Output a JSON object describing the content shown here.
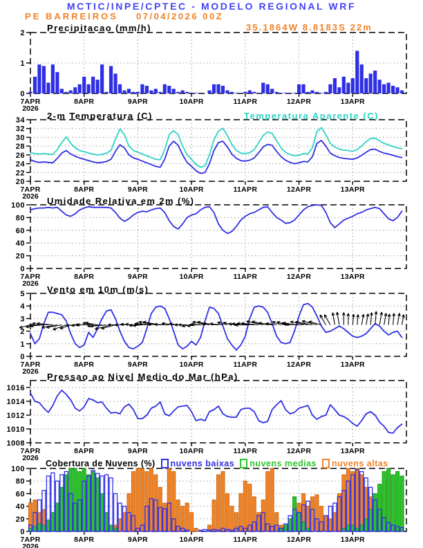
{
  "header": {
    "model_title": "MCTIC/INPE/CPTEC - MODELO REGIONAL WRF",
    "station": "PE BARREIROS",
    "run": "07/04/2026 00Z",
    "location": "35.1864W 8.8183S 22m"
  },
  "colors": {
    "blue": "#2e2ee4",
    "cyan": "#2cd3c4",
    "orange": "#f08228",
    "orange_dark": "#cf6a10",
    "green": "#2cc42c",
    "green_dark": "#0f9a0f",
    "header_blue": "#4343f5",
    "grid": "#9a9a9a",
    "black": "#000000"
  },
  "time_axis": {
    "days": [
      "7APR",
      "8APR",
      "9APR",
      "10APR",
      "11APR",
      "12APR",
      "13APR"
    ],
    "year": "2026",
    "start_hour": "00Z",
    "hours_total": 168,
    "step_hours": 2
  },
  "chart_data": [
    {
      "id": "precip",
      "type": "bar",
      "title": "Precipitacao (mm/h)",
      "ylim": [
        0,
        2
      ],
      "yticks": [
        0,
        1,
        2
      ],
      "series_color": "blue",
      "values": [
        0.05,
        0.55,
        0.95,
        0.9,
        0.35,
        0.95,
        0.7,
        0.15,
        0.05,
        0.1,
        0.2,
        0.3,
        0.55,
        0.3,
        0.55,
        0.45,
        0.95,
        0.05,
        0.9,
        0.65,
        0.3,
        0.1,
        0.15,
        0.05,
        0.05,
        0.3,
        0.25,
        0.1,
        0.15,
        0.05,
        0.3,
        0.25,
        0.15,
        0.05,
        0.1,
        0.05,
        0.02,
        0.02,
        0,
        0,
        0.1,
        0.3,
        0.3,
        0.25,
        0.1,
        0.05,
        0.02,
        0.02,
        0.05,
        0.1,
        0.05,
        0.02,
        0.35,
        0.3,
        0.15,
        0.05,
        0.02,
        0.02,
        0.02,
        0.02,
        0.3,
        0.3,
        0.05,
        0.1,
        0.05,
        0.02,
        0.05,
        0.3,
        0.5,
        0.2,
        0.55,
        0.35,
        0.5,
        1.4,
        0.95,
        0.5,
        0.65,
        0.75,
        0.45,
        0.3,
        0.35,
        0.25,
        0.2,
        0.1
      ]
    },
    {
      "id": "temp",
      "type": "line",
      "title": "2-m Temperatura (C)",
      "title2": "Temperatura Aparente (C)",
      "ylim": [
        20,
        34
      ],
      "yticks": [
        20,
        22,
        24,
        26,
        28,
        30,
        32,
        34
      ],
      "series": [
        {
          "name": "2-m Temperatura (C)",
          "color": "blue",
          "values": [
            24.9,
            24.5,
            24.3,
            24.4,
            24.3,
            24.2,
            25.2,
            26.4,
            27.0,
            26.2,
            25.7,
            25.3,
            25.0,
            24.7,
            24.4,
            24.2,
            24.3,
            24.5,
            25.0,
            26.8,
            28.3,
            27.6,
            26.0,
            25.3,
            25.0,
            24.6,
            24.2,
            23.8,
            23.4,
            23.2,
            25.0,
            28.0,
            29.1,
            28.2,
            26.0,
            24.3,
            23.4,
            22.4,
            21.8,
            22.0,
            24.0,
            27.0,
            28.8,
            29.1,
            27.8,
            26.2,
            25.2,
            24.7,
            24.6,
            24.8,
            25.3,
            26.5,
            27.8,
            28.4,
            28.2,
            26.8,
            25.6,
            24.8,
            24.3,
            24.0,
            24.2,
            24.5,
            24.4,
            25.6,
            28.6,
            29.3,
            28.0,
            26.4,
            25.8,
            25.4,
            25.2,
            25.1,
            25.0,
            25.3,
            25.9,
            26.6,
            27.2,
            27.3,
            26.8,
            26.4,
            26.2,
            25.9,
            25.6,
            25.4
          ]
        },
        {
          "name": "Temperatura Aparente (C)",
          "color": "cyan",
          "values": [
            26.5,
            26.3,
            26.2,
            26.3,
            26.2,
            26.1,
            27.2,
            28.8,
            30.1,
            28.6,
            27.6,
            27.0,
            26.7,
            26.4,
            26.2,
            26.0,
            26.1,
            26.4,
            27.0,
            29.6,
            31.9,
            30.6,
            28.0,
            27.0,
            26.6,
            26.2,
            25.8,
            25.4,
            25.0,
            24.9,
            27.2,
            30.6,
            31.5,
            30.6,
            28.0,
            26.0,
            25.0,
            23.8,
            23.2,
            23.5,
            26.0,
            29.4,
            31.4,
            32.0,
            30.4,
            28.4,
            27.0,
            26.4,
            26.3,
            26.5,
            27.2,
            28.8,
            30.4,
            31.2,
            30.9,
            29.2,
            27.6,
            26.6,
            26.1,
            25.8,
            25.9,
            26.3,
            26.2,
            27.6,
            31.3,
            32.2,
            30.6,
            28.6,
            27.8,
            27.3,
            27.1,
            27.0,
            26.8,
            27.2,
            28.0,
            29.0,
            29.7,
            29.8,
            29.2,
            28.6,
            28.3,
            27.9,
            27.6,
            27.4
          ]
        }
      ]
    },
    {
      "id": "rh",
      "type": "line",
      "title": "Umidade Relativa em 2m (%)",
      "ylim": [
        0,
        100
      ],
      "yticks": [
        0,
        20,
        40,
        60,
        80,
        100
      ],
      "series": [
        {
          "name": "Umidade Relativa",
          "color": "blue",
          "values": [
            92,
            94,
            95,
            95,
            96,
            95,
            96,
            90,
            84,
            82,
            86,
            92,
            95,
            97,
            96,
            96,
            96,
            96,
            95,
            88,
            79,
            74,
            78,
            84,
            88,
            90,
            89,
            92,
            94,
            95,
            88,
            75,
            66,
            62,
            70,
            80,
            84,
            86,
            92,
            96,
            97,
            88,
            70,
            60,
            55,
            58,
            66,
            76,
            82,
            86,
            88,
            92,
            96,
            97,
            88,
            80,
            76,
            71,
            72,
            76,
            84,
            92,
            97,
            99,
            100,
            99,
            88,
            72,
            64,
            70,
            76,
            79,
            82,
            86,
            88,
            92,
            94,
            96,
            94,
            86,
            78,
            75,
            80,
            90
          ]
        }
      ]
    },
    {
      "id": "wind",
      "type": "wind",
      "title": "Vento em 10m (m/s)",
      "ylim": [
        0,
        5
      ],
      "yticks": [
        0,
        1,
        2,
        3,
        4,
        5
      ],
      "arrow_baseline": 2.5,
      "series": [
        {
          "name": "Velocidade do vento",
          "color": "blue",
          "values": [
            1.8,
            1.0,
            1.4,
            2.6,
            3.5,
            3.5,
            3.4,
            3.3,
            2.8,
            1.8,
            1.0,
            0.7,
            0.9,
            1.9,
            1.5,
            2.2,
            3.0,
            3.6,
            3.7,
            3.0,
            2.0,
            1.2,
            0.7,
            0.6,
            0.8,
            1.1,
            2.2,
            3.4,
            3.9,
            4.0,
            3.8,
            3.0,
            2.0,
            0.9,
            0.6,
            0.8,
            1.2,
            0.9,
            1.5,
            2.8,
            3.9,
            3.8,
            3.4,
            2.4,
            1.4,
            0.9,
            0.5,
            0.9,
            1.6,
            3.0,
            3.9,
            4.0,
            3.9,
            3.5,
            2.6,
            1.6,
            1.1,
            1.0,
            1.1,
            2.0,
            3.2,
            4.1,
            4.2,
            3.9,
            3.2,
            2.4,
            1.9,
            2.0,
            2.2,
            2.4,
            2.2,
            1.9,
            1.6,
            1.5,
            1.6,
            1.8,
            2.2,
            2.6,
            2.4,
            2.0,
            1.7,
            1.9,
            2.0,
            1.5
          ]
        }
      ],
      "wind_dir_deg": [
        195,
        185,
        175,
        190,
        200,
        185,
        180,
        170,
        185,
        195,
        180,
        175,
        185,
        175,
        170,
        178,
        172,
        180,
        188,
        178,
        170,
        175,
        165,
        172,
        180,
        175,
        168,
        172,
        160,
        170,
        178,
        170,
        165,
        120,
        100,
        90,
        85,
        80,
        85,
        80,
        85,
        80
      ]
    },
    {
      "id": "slp",
      "type": "line",
      "title": "Pressao ao Nivel Medio do Mar (hPa)",
      "ylim": [
        1008,
        1017
      ],
      "yticks": [
        1008,
        1010,
        1012,
        1014,
        1016
      ],
      "series": [
        {
          "name": "Pressao ao nivel medio do mar",
          "color": "blue",
          "values": [
            1015.2,
            1014.0,
            1013.8,
            1013.0,
            1012.4,
            1013.4,
            1014.8,
            1015.6,
            1015.0,
            1014.2,
            1013.0,
            1012.6,
            1013.2,
            1014.4,
            1014.2,
            1013.8,
            1013.9,
            1013.0,
            1012.3,
            1012.4,
            1012.2,
            1013.2,
            1013.6,
            1012.8,
            1011.5,
            1011.5,
            1012.0,
            1013.0,
            1013.3,
            1013.9,
            1012.2,
            1011.9,
            1012.6,
            1013.2,
            1013.3,
            1013.4,
            1012.5,
            1011.2,
            1011.4,
            1011.2,
            1012.5,
            1012.8,
            1013.3,
            1012.2,
            1011.8,
            1011.7,
            1011.7,
            1012.8,
            1013.0,
            1013.0,
            1012.5,
            1011.2,
            1010.9,
            1011.1,
            1012.8,
            1013.5,
            1014.1,
            1012.8,
            1012.2,
            1012.4,
            1013.0,
            1013.2,
            1013.4,
            1012.0,
            1011.4,
            1011.8,
            1012.0,
            1013.5,
            1012.8,
            1012.0,
            1011.8,
            1011.4,
            1010.8,
            1010.4,
            1011.2,
            1012.2,
            1012.5,
            1012.0,
            1011.0,
            1010.4,
            1009.5,
            1009.4,
            1010.2,
            1010.7
          ]
        }
      ]
    },
    {
      "id": "clouds",
      "type": "clouds",
      "title": "Cobertura de Nuvens (%)",
      "ylim": [
        0,
        100
      ],
      "yticks": [
        0,
        20,
        40,
        60,
        80,
        100
      ],
      "legend_position": "top",
      "series": [
        {
          "key": "low",
          "label": "nuvens baixas",
          "color": "blue",
          "style": "outline",
          "values": [
            10,
            30,
            50,
            65,
            88,
            93,
            80,
            90,
            95,
            60,
            45,
            50,
            80,
            88,
            97,
            92,
            88,
            90,
            85,
            60,
            45,
            40,
            30,
            25,
            5,
            10,
            40,
            52,
            50,
            38,
            36,
            45,
            20,
            8,
            5,
            2,
            0,
            0,
            2,
            3,
            2,
            3,
            2,
            5,
            3,
            2,
            5,
            8,
            5,
            10,
            15,
            25,
            30,
            12,
            8,
            10,
            5,
            12,
            25,
            35,
            30,
            42,
            48,
            35,
            20,
            15,
            25,
            40,
            45,
            55,
            65,
            80,
            90,
            98,
            95,
            85,
            70,
            50,
            35,
            22,
            14,
            10,
            8,
            6
          ]
        },
        {
          "key": "mid",
          "label": "nuvens medias",
          "color": "green",
          "style": "fill",
          "values": [
            5,
            8,
            12,
            10,
            18,
            30,
            45,
            70,
            90,
            100,
            100,
            95,
            100,
            90,
            95,
            85,
            60,
            30,
            10,
            5,
            0,
            0,
            0,
            0,
            0,
            0,
            0,
            0,
            0,
            0,
            0,
            0,
            0,
            0,
            0,
            0,
            0,
            0,
            0,
            0,
            0,
            0,
            0,
            0,
            0,
            0,
            0,
            0,
            0,
            0,
            0,
            0,
            0,
            0,
            0,
            0,
            5,
            10,
            20,
            55,
            30,
            15,
            5,
            0,
            0,
            0,
            0,
            0,
            0,
            0,
            5,
            10,
            10,
            5,
            10,
            20,
            35,
            60,
            75,
            95,
            100,
            90,
            95,
            88
          ]
        },
        {
          "key": "high",
          "label": "nuvens altas",
          "color": "orange",
          "style": "fill",
          "values": [
            45,
            50,
            30,
            35,
            15,
            10,
            25,
            15,
            10,
            5,
            5,
            10,
            5,
            10,
            15,
            5,
            10,
            5,
            5,
            10,
            20,
            30,
            60,
            95,
            100,
            100,
            95,
            100,
            90,
            70,
            45,
            100,
            95,
            50,
            40,
            45,
            30,
            5,
            0,
            0,
            10,
            50,
            90,
            95,
            60,
            40,
            30,
            60,
            80,
            75,
            55,
            30,
            50,
            95,
            100,
            30,
            10,
            5,
            10,
            40,
            45,
            60,
            40,
            55,
            58,
            40,
            25,
            20,
            30,
            60,
            90,
            100,
            95,
            100,
            90,
            70,
            55,
            45,
            60,
            80,
            95,
            85,
            70,
            55
          ]
        }
      ]
    }
  ]
}
